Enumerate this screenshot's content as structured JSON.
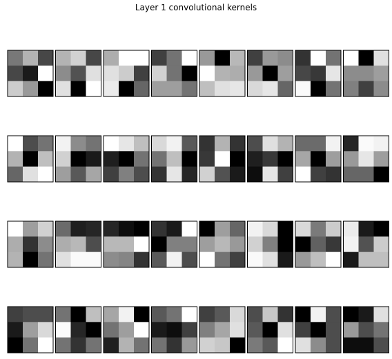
{
  "figure": {
    "title": "Layer 1 convolutional kernels"
  },
  "chart_data": {
    "type": "heatmap",
    "title": "Layer 1 convolutional kernels",
    "colormap": "gray",
    "grid": false,
    "layout": {
      "rows": 4,
      "cols": 8
    },
    "kernel_shape": [
      3,
      3
    ],
    "value_range": [
      0,
      1
    ],
    "kernels": [
      [
        [
          0.47,
          0.7,
          0.28
        ],
        [
          0.28,
          0.1,
          1.0
        ],
        [
          0.8,
          0.6,
          0.0
        ]
      ],
      [
        [
          0.7,
          0.82,
          0.28
        ],
        [
          0.55,
          0.32,
          0.88
        ],
        [
          0.88,
          0.0,
          1.0
        ]
      ],
      [
        [
          0.68,
          1.0,
          1.0
        ],
        [
          0.88,
          0.8,
          0.25
        ],
        [
          0.92,
          0.0,
          0.4
        ]
      ],
      [
        [
          0.25,
          0.45,
          1.0
        ],
        [
          0.82,
          0.45,
          0.0
        ],
        [
          0.62,
          0.62,
          0.45
        ]
      ],
      [
        [
          0.6,
          0.0,
          0.72
        ],
        [
          1.0,
          0.7,
          0.68
        ],
        [
          0.75,
          0.88,
          0.9
        ]
      ],
      [
        [
          0.25,
          0.6,
          0.55
        ],
        [
          0.6,
          0.0,
          0.62
        ],
        [
          0.85,
          0.9,
          0.4
        ]
      ],
      [
        [
          0.2,
          1.0,
          0.45
        ],
        [
          0.28,
          0.22,
          0.9
        ],
        [
          0.98,
          0.0,
          0.45
        ]
      ],
      [
        [
          1.0,
          0.0,
          0.88
        ],
        [
          0.55,
          0.55,
          0.62
        ],
        [
          0.5,
          0.25,
          0.55
        ]
      ],
      [
        [
          1.0,
          0.3,
          0.45
        ],
        [
          0.7,
          0.0,
          0.75
        ],
        [
          0.4,
          0.88,
          1.0
        ]
      ],
      [
        [
          0.95,
          0.55,
          0.45
        ],
        [
          0.82,
          0.0,
          0.1
        ],
        [
          0.62,
          0.35,
          0.65
        ]
      ],
      [
        [
          1.0,
          0.9,
          0.75
        ],
        [
          0.12,
          0.0,
          0.45
        ],
        [
          0.25,
          0.5,
          0.3
        ]
      ],
      [
        [
          0.85,
          0.95,
          0.35
        ],
        [
          0.45,
          0.75,
          0.0
        ],
        [
          0.2,
          0.9,
          0.15
        ]
      ],
      [
        [
          0.2,
          0.7,
          0.2
        ],
        [
          0.22,
          1.0,
          0.0
        ],
        [
          0.82,
          0.32,
          0.1
        ]
      ],
      [
        [
          0.3,
          0.88,
          0.7
        ],
        [
          0.12,
          0.22,
          0.0
        ],
        [
          0.05,
          0.9,
          0.25
        ]
      ],
      [
        [
          0.42,
          0.42,
          0.95
        ],
        [
          0.65,
          0.0,
          0.62
        ],
        [
          1.0,
          0.25,
          0.2
        ]
      ],
      [
        [
          0.15,
          0.98,
          0.95
        ],
        [
          0.6,
          0.9,
          0.62
        ],
        [
          0.4,
          0.4,
          0.0
        ]
      ],
      [
        [
          1.0,
          0.62,
          0.82
        ],
        [
          0.68,
          0.2,
          0.55
        ],
        [
          0.7,
          0.0,
          0.45
        ]
      ],
      [
        [
          0.42,
          0.12,
          0.15
        ],
        [
          0.68,
          0.72,
          0.3
        ],
        [
          0.88,
          0.98,
          0.98
        ]
      ],
      [
        [
          0.15,
          0.05,
          0.0
        ],
        [
          0.72,
          0.72,
          1.0
        ],
        [
          0.55,
          0.52,
          0.2
        ]
      ],
      [
        [
          0.2,
          0.1,
          1.0
        ],
        [
          0.0,
          0.5,
          0.5
        ],
        [
          0.35,
          0.95,
          0.3
        ]
      ],
      [
        [
          0.0,
          0.62,
          0.4
        ],
        [
          0.62,
          0.72,
          0.6
        ],
        [
          1.0,
          0.45,
          0.25
        ]
      ],
      [
        [
          0.95,
          0.85,
          0.0
        ],
        [
          0.82,
          0.5,
          0.0
        ],
        [
          0.98,
          0.88,
          0.1
        ]
      ],
      [
        [
          0.85,
          0.48,
          0.8
        ],
        [
          0.0,
          0.38,
          0.22
        ],
        [
          0.6,
          0.75,
          1.0
        ]
      ],
      [
        [
          0.92,
          0.1,
          0.0
        ],
        [
          0.95,
          0.32,
          0.8
        ],
        [
          0.1,
          0.75,
          0.75
        ]
      ],
      [
        [
          0.25,
          0.3,
          0.3
        ],
        [
          0.1,
          0.62,
          0.85
        ],
        [
          0.0,
          0.45,
          1.0
        ]
      ],
      [
        [
          0.45,
          0.0,
          0.75
        ],
        [
          0.98,
          0.15,
          0.0
        ],
        [
          0.45,
          0.2,
          0.45
        ]
      ],
      [
        [
          0.65,
          0.95,
          0.0
        ],
        [
          0.45,
          0.62,
          1.0
        ],
        [
          0.12,
          0.7,
          0.45
        ]
      ],
      [
        [
          0.35,
          0.45,
          1.0
        ],
        [
          0.1,
          0.05,
          0.25
        ],
        [
          0.45,
          0.2,
          0.6
        ]
      ],
      [
        [
          0.25,
          0.35,
          0.85
        ],
        [
          0.5,
          0.65,
          0.88
        ],
        [
          0.82,
          0.78,
          0.0
        ]
      ],
      [
        [
          0.3,
          0.78,
          0.2
        ],
        [
          0.35,
          0.0,
          0.88
        ],
        [
          0.48,
          0.35,
          1.0
        ]
      ],
      [
        [
          0.0,
          0.95,
          0.3
        ],
        [
          0.25,
          0.0,
          0.3
        ],
        [
          0.88,
          0.55,
          0.3
        ]
      ],
      [
        [
          0.0,
          0.1,
          0.88
        ],
        [
          0.6,
          0.3,
          0.45
        ],
        [
          0.05,
          0.05,
          0.3
        ]
      ]
    ]
  }
}
